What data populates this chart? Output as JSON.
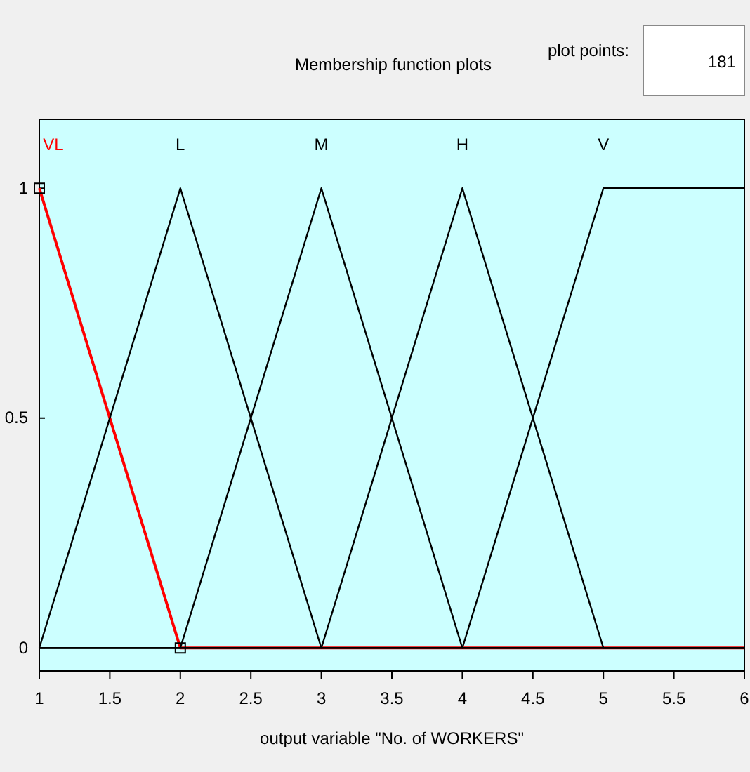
{
  "chart_data": {
    "type": "line",
    "title": "Membership function plots",
    "xlabel": "output variable \"No. of WORKERS\"",
    "annotations": [
      "plot points:",
      "181"
    ],
    "xlim": [
      1,
      6
    ],
    "xticks": [
      1,
      1.5,
      2,
      2.5,
      3,
      3.5,
      4,
      4.5,
      5,
      5.5,
      6
    ],
    "ylim": [
      -0.05,
      1.15
    ],
    "yticks": [
      0,
      0.5,
      1
    ],
    "grid": false,
    "line_style": "solid",
    "series": [
      {
        "name": "VL",
        "color": "#ff0000",
        "x": [
          1,
          2,
          6
        ],
        "values": [
          1,
          0,
          0
        ]
      },
      {
        "name": "L",
        "color": "#000000",
        "x": [
          1,
          2,
          3,
          6
        ],
        "values": [
          0,
          1,
          0,
          0
        ]
      },
      {
        "name": "M",
        "color": "#000000",
        "x": [
          1,
          2,
          3,
          4,
          6
        ],
        "values": [
          0,
          0,
          1,
          0,
          0
        ]
      },
      {
        "name": "H",
        "color": "#000000",
        "x": [
          1,
          3,
          4,
          5,
          6
        ],
        "values": [
          0,
          0,
          1,
          0,
          0
        ]
      },
      {
        "name": "V",
        "color": "#000000",
        "x": [
          1,
          4,
          5,
          6
        ],
        "values": [
          0,
          0,
          1,
          1
        ]
      }
    ]
  }
}
